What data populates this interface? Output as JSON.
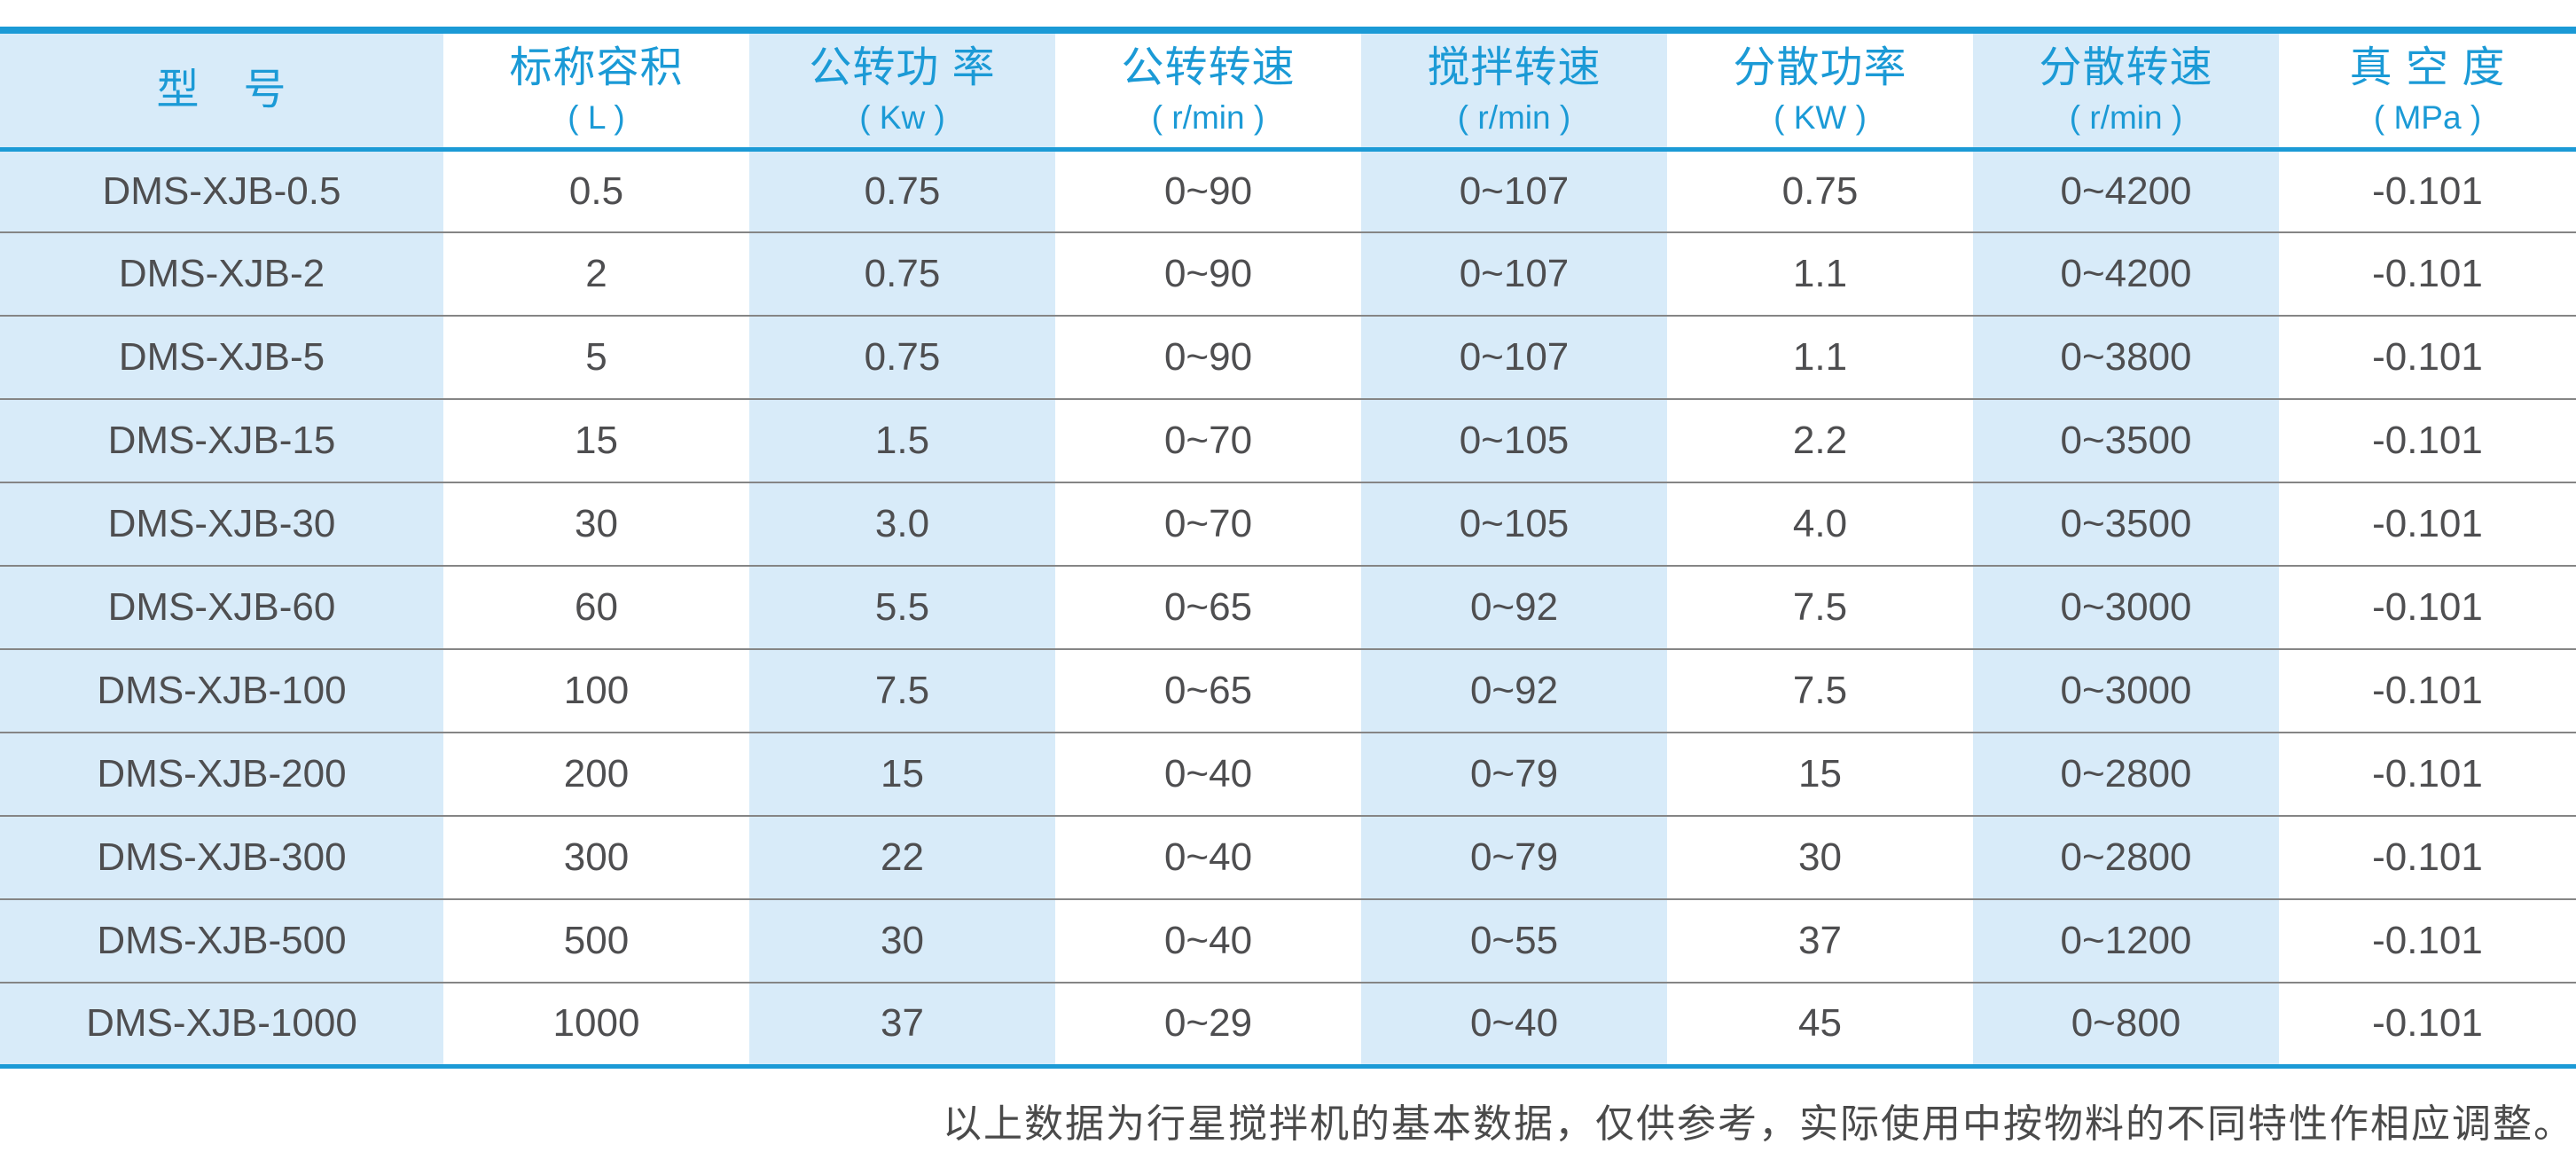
{
  "colors": {
    "accent_blue": "#1b9ad6",
    "column_stripe_blue": "#d8ebf9",
    "body_text": "#4e4e50",
    "row_divider_gray": "#858585"
  },
  "table": {
    "columns": [
      {
        "label": "型　号",
        "unit": ""
      },
      {
        "label": "标称容积",
        "unit": "( L )"
      },
      {
        "label": "公转功 率",
        "unit": "( Kw )"
      },
      {
        "label": "公转转速",
        "unit": "( r/min )"
      },
      {
        "label": "搅拌转速",
        "unit": "( r/min )"
      },
      {
        "label": "分散功率",
        "unit": "( KW )"
      },
      {
        "label": "分散转速",
        "unit": "( r/min )"
      },
      {
        "label": "真 空 度",
        "unit": "( MPa )"
      }
    ],
    "rows": [
      [
        "DMS-XJB-0.5",
        "0.5",
        "0.75",
        "0~90",
        "0~107",
        "0.75",
        "0~4200",
        "-0.101"
      ],
      [
        "DMS-XJB-2",
        "2",
        "0.75",
        "0~90",
        "0~107",
        "1.1",
        "0~4200",
        "-0.101"
      ],
      [
        "DMS-XJB-5",
        "5",
        "0.75",
        "0~90",
        "0~107",
        "1.1",
        "0~3800",
        "-0.101"
      ],
      [
        "DMS-XJB-15",
        "15",
        "1.5",
        "0~70",
        "0~105",
        "2.2",
        "0~3500",
        "-0.101"
      ],
      [
        "DMS-XJB-30",
        "30",
        "3.0",
        "0~70",
        "0~105",
        "4.0",
        "0~3500",
        "-0.101"
      ],
      [
        "DMS-XJB-60",
        "60",
        "5.5",
        "0~65",
        "0~92",
        "7.5",
        "0~3000",
        "-0.101"
      ],
      [
        "DMS-XJB-100",
        "100",
        "7.5",
        "0~65",
        "0~92",
        "7.5",
        "0~3000",
        "-0.101"
      ],
      [
        "DMS-XJB-200",
        "200",
        "15",
        "0~40",
        "0~79",
        "15",
        "0~2800",
        "-0.101"
      ],
      [
        "DMS-XJB-300",
        "300",
        "22",
        "0~40",
        "0~79",
        "30",
        "0~2800",
        "-0.101"
      ],
      [
        "DMS-XJB-500",
        "500",
        "30",
        "0~40",
        "0~55",
        "37",
        "0~1200",
        "-0.101"
      ],
      [
        "DMS-XJB-1000",
        "1000",
        "37",
        "0~29",
        "0~40",
        "45",
        "0~800",
        "-0.101"
      ]
    ]
  },
  "footer": {
    "note": "以上数据为行星搅拌机的基本数据，仅供参考，实际使用中按物料的不同特性作相应调整。"
  }
}
